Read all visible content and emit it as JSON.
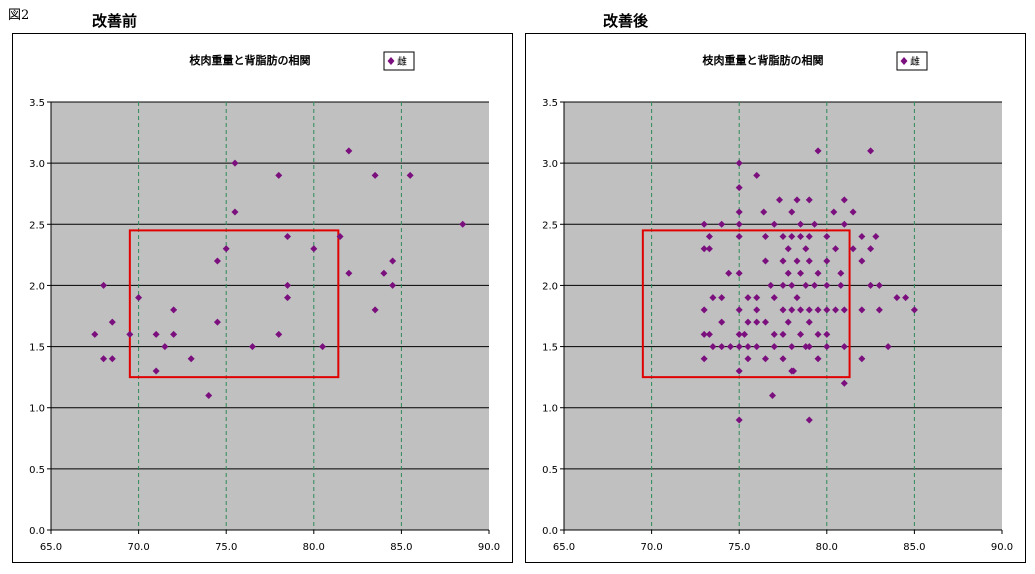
{
  "figure_label": "図2",
  "chart_data": [
    {
      "type": "scatter",
      "panel_heading": "改善前",
      "title": "枝肉重量と背脂肪の相関",
      "legend": "雌",
      "legend_placement": "top-right",
      "xlim": [
        65,
        90
      ],
      "ylim": [
        0,
        3.5
      ],
      "x_ticks": [
        "65.0",
        "70.0",
        "75.0",
        "80.0",
        "85.0",
        "90.0"
      ],
      "y_ticks": [
        "0.0",
        "0.5",
        "1.0",
        "1.5",
        "2.0",
        "2.5",
        "3.0",
        "3.5"
      ],
      "grid": {
        "horizontal": true,
        "vertical_dashed": true
      },
      "colors": {
        "plot_bg": "#c0c0c0",
        "point": "#7b0f7e",
        "highlight": "#e00000",
        "vgrid": "#2e8b57"
      },
      "highlight_box": {
        "x": [
          69.5,
          81.4
        ],
        "y": [
          1.25,
          2.45
        ]
      },
      "series": [
        {
          "name": "雌",
          "points": [
            [
              67.5,
              1.6
            ],
            [
              68.0,
              2.0
            ],
            [
              68.0,
              1.4
            ],
            [
              68.5,
              1.7
            ],
            [
              68.5,
              1.4
            ],
            [
              69.5,
              1.6
            ],
            [
              70.0,
              1.9
            ],
            [
              71.0,
              1.6
            ],
            [
              71.0,
              1.3
            ],
            [
              71.5,
              1.5
            ],
            [
              72.0,
              1.8
            ],
            [
              72.0,
              1.6
            ],
            [
              73.0,
              1.4
            ],
            [
              74.0,
              1.1
            ],
            [
              74.5,
              1.7
            ],
            [
              74.5,
              2.2
            ],
            [
              75.0,
              2.3
            ],
            [
              75.5,
              3.0
            ],
            [
              75.5,
              2.6
            ],
            [
              76.5,
              1.5
            ],
            [
              78.0,
              2.9
            ],
            [
              78.0,
              1.6
            ],
            [
              78.5,
              2.4
            ],
            [
              78.5,
              2.0
            ],
            [
              78.5,
              1.9
            ],
            [
              80.0,
              2.3
            ],
            [
              80.5,
              1.5
            ],
            [
              81.5,
              2.4
            ],
            [
              82.0,
              3.1
            ],
            [
              82.0,
              2.1
            ],
            [
              83.5,
              2.9
            ],
            [
              83.5,
              1.8
            ],
            [
              84.0,
              2.1
            ],
            [
              84.5,
              2.2
            ],
            [
              84.5,
              2.0
            ],
            [
              85.5,
              2.9
            ],
            [
              88.5,
              2.5
            ]
          ]
        }
      ]
    },
    {
      "type": "scatter",
      "panel_heading": "改善後",
      "title": "枝肉重量と背脂肪の相関",
      "legend": "雌",
      "legend_placement": "top-right",
      "xlim": [
        65,
        90
      ],
      "ylim": [
        0,
        3.5
      ],
      "x_ticks": [
        "65.0",
        "70.0",
        "75.0",
        "80.0",
        "85.0",
        "90.0"
      ],
      "y_ticks": [
        "0.0",
        "0.5",
        "1.0",
        "1.5",
        "2.0",
        "2.5",
        "3.0",
        "3.5"
      ],
      "grid": {
        "horizontal": true,
        "vertical_dashed": true
      },
      "colors": {
        "plot_bg": "#c0c0c0",
        "point": "#7b0f7e",
        "highlight": "#e00000",
        "vgrid": "#2e8b57"
      },
      "highlight_box": {
        "x": [
          69.5,
          81.3
        ],
        "y": [
          1.25,
          2.45
        ]
      },
      "series": [
        {
          "name": "雌",
          "points": [
            [
              73,
              2.5
            ],
            [
              73,
              2.3
            ],
            [
              73,
              1.8
            ],
            [
              73,
              1.6
            ],
            [
              73,
              1.4
            ],
            [
              73.3,
              2.4
            ],
            [
              73.3,
              2.3
            ],
            [
              73.3,
              1.6
            ],
            [
              73.5,
              1.9
            ],
            [
              73.5,
              1.5
            ],
            [
              74,
              2.5
            ],
            [
              74,
              1.9
            ],
            [
              74,
              1.5
            ],
            [
              74,
              1.7
            ],
            [
              74.4,
              2.1
            ],
            [
              74.5,
              1.5
            ],
            [
              75,
              3.0
            ],
            [
              75,
              2.8
            ],
            [
              75,
              2.6
            ],
            [
              75,
              2.5
            ],
            [
              75,
              2.4
            ],
            [
              75,
              2.1
            ],
            [
              75,
              1.8
            ],
            [
              75,
              1.6
            ],
            [
              75,
              1.5
            ],
            [
              75,
              1.3
            ],
            [
              75,
              0.9
            ],
            [
              75.3,
              1.6
            ],
            [
              75.5,
              1.9
            ],
            [
              75.5,
              1.7
            ],
            [
              75.5,
              1.5
            ],
            [
              75.5,
              1.4
            ],
            [
              76,
              2.9
            ],
            [
              76,
              1.9
            ],
            [
              76,
              1.8
            ],
            [
              76,
              1.7
            ],
            [
              76,
              1.5
            ],
            [
              76.4,
              2.6
            ],
            [
              76.5,
              2.4
            ],
            [
              76.5,
              2.2
            ],
            [
              76.5,
              1.7
            ],
            [
              76.5,
              1.4
            ],
            [
              76.8,
              2.0
            ],
            [
              77,
              2.5
            ],
            [
              77,
              1.9
            ],
            [
              77,
              1.6
            ],
            [
              77,
              1.5
            ],
            [
              76.9,
              1.1
            ],
            [
              77.3,
              2.7
            ],
            [
              77.5,
              2.4
            ],
            [
              77.5,
              2.2
            ],
            [
              77.5,
              2.0
            ],
            [
              77.5,
              1.8
            ],
            [
              77.5,
              1.6
            ],
            [
              77.5,
              1.4
            ],
            [
              77.8,
              2.3
            ],
            [
              77.8,
              2.1
            ],
            [
              77.8,
              1.7
            ],
            [
              78,
              2.6
            ],
            [
              78,
              2.4
            ],
            [
              78,
              2.0
            ],
            [
              78,
              1.8
            ],
            [
              78,
              1.5
            ],
            [
              78,
              1.3
            ],
            [
              78.1,
              1.3
            ],
            [
              78.3,
              2.7
            ],
            [
              78.3,
              2.2
            ],
            [
              78.3,
              1.9
            ],
            [
              78.5,
              2.5
            ],
            [
              78.5,
              2.4
            ],
            [
              78.5,
              2.1
            ],
            [
              78.5,
              1.8
            ],
            [
              78.5,
              1.6
            ],
            [
              78.8,
              2.3
            ],
            [
              78.8,
              2.0
            ],
            [
              78.8,
              1.5
            ],
            [
              79,
              2.7
            ],
            [
              79,
              2.4
            ],
            [
              79,
              2.2
            ],
            [
              79,
              1.8
            ],
            [
              79,
              1.7
            ],
            [
              79,
              1.5
            ],
            [
              79,
              0.9
            ],
            [
              79.3,
              2.5
            ],
            [
              79.3,
              2.0
            ],
            [
              79.5,
              3.1
            ],
            [
              79.5,
              2.1
            ],
            [
              79.5,
              1.8
            ],
            [
              79.5,
              1.6
            ],
            [
              79.5,
              1.4
            ],
            [
              80,
              2.4
            ],
            [
              80,
              2.2
            ],
            [
              80,
              2.0
            ],
            [
              80,
              1.8
            ],
            [
              80,
              1.6
            ],
            [
              80,
              1.5
            ],
            [
              80.4,
              2.6
            ],
            [
              80.5,
              2.3
            ],
            [
              80.5,
              1.8
            ],
            [
              80.8,
              2.1
            ],
            [
              80.8,
              2.0
            ],
            [
              81,
              2.7
            ],
            [
              81,
              2.5
            ],
            [
              81,
              1.8
            ],
            [
              81,
              1.5
            ],
            [
              81,
              1.2
            ],
            [
              81.5,
              2.6
            ],
            [
              81.5,
              2.3
            ],
            [
              82,
              2.4
            ],
            [
              82,
              2.2
            ],
            [
              82,
              1.8
            ],
            [
              82,
              1.4
            ],
            [
              82.5,
              3.1
            ],
            [
              82.5,
              2.3
            ],
            [
              82.5,
              2.0
            ],
            [
              82.8,
              2.4
            ],
            [
              83,
              2.0
            ],
            [
              83,
              1.8
            ],
            [
              83.5,
              1.5
            ],
            [
              84,
              1.9
            ],
            [
              84.5,
              1.9
            ],
            [
              85,
              1.8
            ]
          ]
        }
      ]
    }
  ]
}
